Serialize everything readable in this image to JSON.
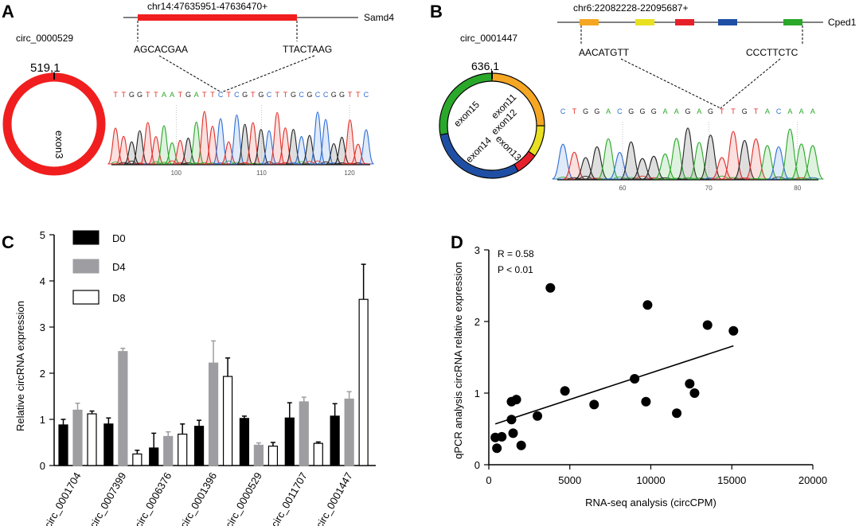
{
  "panels": {
    "a": {
      "letter": "A",
      "circ_name": "circ_0000529",
      "coord": "chr14:47635951-47636470+",
      "gene": "Samd4",
      "left_seq": "AGCACGAA",
      "right_seq": "TTACTAAG",
      "circle_size": "519,1",
      "exon_label": "exon3",
      "trace_bases": "TTGGTTAATGATTCTCGTGCTTGCGCCGGTTC",
      "axis_ticks": [
        "100",
        "110",
        "120"
      ],
      "colors": {
        "circle": "#f01e1e",
        "exon_bar": "#f01e1e"
      }
    },
    "b": {
      "letter": "B",
      "circ_name": "circ_0001447",
      "coord": "chr6:22082228-22095687+",
      "gene": "Cped1",
      "left_seq": "AACATGTT",
      "right_seq": "CCCTTCTC",
      "circle_size": "636,1",
      "exon_labels": [
        "exon11",
        "exon12",
        "exon13",
        "exon14",
        "exon15"
      ],
      "trace_bases": "CTGGACGGGAAGAGTTGTACAAA",
      "axis_ticks": [
        "60",
        "70",
        "80"
      ],
      "exon_colors": [
        "#f5a623",
        "#e8e020",
        "#e6202a",
        "#1f4fa5",
        "#2aa82a"
      ]
    },
    "c": {
      "letter": "C",
      "legend": [
        "D0",
        "D4",
        "D8"
      ],
      "colors": [
        "#000000",
        "#9e9ea2",
        "#ffffff"
      ]
    },
    "d": {
      "letter": "D",
      "stat_r": "R = 0.58",
      "stat_p": "P < 0.01"
    }
  },
  "chart_data": [
    {
      "type": "bar",
      "panel": "C",
      "title": "",
      "xlabel": "",
      "ylabel": "Relative circRNA expression",
      "ylim": [
        0,
        5
      ],
      "yticks": [
        0,
        1,
        2,
        3,
        4,
        5
      ],
      "categories": [
        "circ_0001704",
        "circ_0007399",
        "circ_0006376",
        "circ_0001396",
        "circ_0000529",
        "circ_0011707",
        "circ_0001447"
      ],
      "series": [
        {
          "name": "D0",
          "values": [
            0.88,
            0.9,
            0.38,
            0.85,
            1.02,
            1.03,
            1.07
          ],
          "errors": [
            0.12,
            0.13,
            0.32,
            0.13,
            0.05,
            0.33,
            0.27
          ]
        },
        {
          "name": "D4",
          "values": [
            1.2,
            2.47,
            0.63,
            2.22,
            0.44,
            1.38,
            1.44
          ],
          "errors": [
            0.15,
            0.07,
            0.1,
            0.48,
            0.05,
            0.1,
            0.16
          ]
        },
        {
          "name": "D8",
          "values": [
            1.12,
            0.25,
            0.68,
            1.93,
            0.42,
            0.48,
            3.6
          ],
          "errors": [
            0.06,
            0.08,
            0.22,
            0.4,
            0.08,
            0.03,
            0.76
          ]
        }
      ]
    },
    {
      "type": "scatter",
      "panel": "D",
      "title": "",
      "xlabel": "RNA-seq analysis (circCPM)",
      "ylabel": "qPCR analysis  circRNA relative expression",
      "xlim": [
        0,
        20000
      ],
      "ylim": [
        0,
        3
      ],
      "xticks": [
        0,
        5000,
        10000,
        15000,
        20000
      ],
      "yticks": [
        0,
        1,
        2,
        3
      ],
      "points": [
        [
          400,
          0.38
        ],
        [
          500,
          0.23
        ],
        [
          800,
          0.39
        ],
        [
          1400,
          0.63
        ],
        [
          1400,
          0.88
        ],
        [
          1500,
          0.44
        ],
        [
          1700,
          0.91
        ],
        [
          2000,
          0.27
        ],
        [
          3000,
          0.68
        ],
        [
          3800,
          2.47
        ],
        [
          4700,
          1.03
        ],
        [
          6500,
          0.84
        ],
        [
          9000,
          1.2
        ],
        [
          9700,
          0.88
        ],
        [
          9800,
          2.23
        ],
        [
          11600,
          0.72
        ],
        [
          12400,
          1.13
        ],
        [
          12700,
          1.0
        ],
        [
          13500,
          1.95
        ],
        [
          15100,
          1.87
        ]
      ],
      "trendline": [
        [
          400,
          0.57
        ],
        [
          15100,
          1.66
        ]
      ]
    }
  ]
}
